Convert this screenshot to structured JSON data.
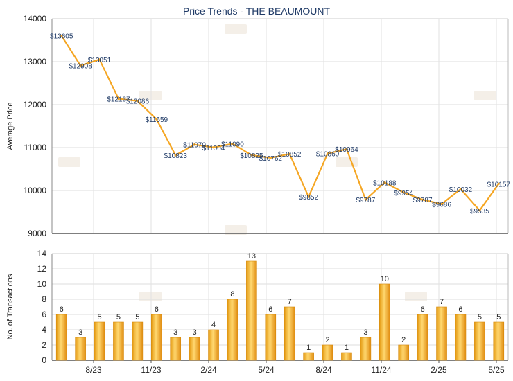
{
  "chart_data": [
    {
      "type": "line",
      "title": "Price Trends - THE BEAUMOUNT",
      "xlabel": "",
      "ylabel": "Average Price",
      "ylim": [
        9000,
        14000
      ],
      "yticks": [
        9000,
        10000,
        11000,
        12000,
        13000,
        14000
      ],
      "xticks": [
        "8/23",
        "11/23",
        "2/24",
        "5/24",
        "8/24",
        "11/24",
        "2/25",
        "5/25"
      ],
      "grid": true,
      "series": [
        {
          "color": "#f5a623",
          "values": [
            13605,
            12908,
            13051,
            12137,
            12086,
            11659,
            10823,
            11070,
            11004,
            11090,
            10825,
            10762,
            10852,
            9852,
            10860,
            10964,
            9787,
            10188,
            9954,
            9787,
            9686,
            10032,
            9535,
            10157
          ],
          "labels": [
            "$13605",
            "$12908",
            "$13051",
            "$12137",
            "$12086",
            "$11659",
            "$10823",
            "$11070",
            "$11004",
            "$11090",
            "$10825",
            "$10762",
            "$10852",
            "$9852",
            "$10860",
            "$10964",
            "$9787",
            "$10188",
            "$9954",
            "$9787",
            "$9686",
            "$10032",
            "$9535",
            "$10157"
          ]
        }
      ]
    },
    {
      "type": "bar",
      "title": "",
      "xlabel": "",
      "ylabel": "No. of Transactions",
      "ylim": [
        0,
        14
      ],
      "yticks": [
        0,
        2,
        4,
        6,
        8,
        10,
        12,
        14
      ],
      "xticks": [
        "8/23",
        "11/23",
        "2/24",
        "5/24",
        "8/24",
        "11/24",
        "2/25",
        "5/25"
      ],
      "grid": true,
      "series": [
        {
          "color": "#f0b429",
          "values": [
            6,
            3,
            5,
            5,
            5,
            6,
            3,
            3,
            4,
            8,
            13,
            6,
            7,
            1,
            2,
            1,
            3,
            10,
            2,
            6,
            7,
            6,
            5,
            5
          ]
        }
      ]
    }
  ]
}
